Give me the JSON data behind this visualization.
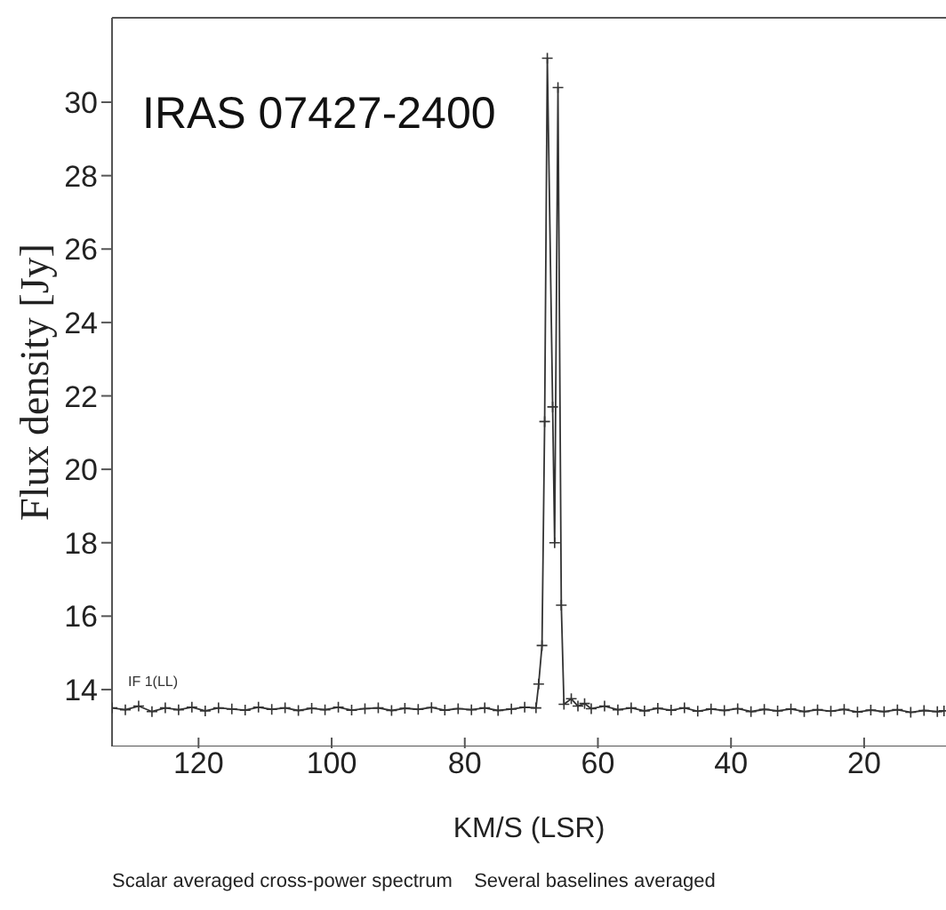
{
  "chart_data": {
    "type": "line",
    "xlabel": "KM/S (LSR)",
    "ylabel": "Flux density [Jy]",
    "annotations": [
      "IRAS 07427-2400",
      "IF 1(LL)",
      "Scalar averaged cross-power spectrum    Several baselines averaged"
    ],
    "xlim": [
      133,
      7.7
    ],
    "xticks": [
      120,
      100,
      80,
      60,
      40,
      20
    ],
    "ylim": [
      12.45,
      32.3
    ],
    "yticks": [
      14,
      16,
      18,
      20,
      22,
      24,
      26,
      28,
      30
    ],
    "marker": "cross",
    "line_style": "solid",
    "series": [
      {
        "color": "#333333",
        "x": [
          133,
          131,
          129,
          127,
          125,
          123,
          121,
          119,
          117,
          115,
          113,
          111,
          109,
          107,
          105,
          103,
          101,
          99,
          97,
          95,
          93,
          91,
          89,
          87,
          85,
          83,
          81,
          79,
          77,
          75,
          73,
          71,
          69.3,
          68.9,
          68.4,
          68.0,
          67.6,
          66.8,
          66.5,
          66.0,
          65.5,
          65.1,
          64,
          63,
          62,
          61,
          59,
          57,
          55,
          53,
          51,
          49,
          47,
          45,
          43,
          41,
          39,
          37,
          35,
          33,
          31,
          29,
          27,
          25,
          23,
          21,
          19,
          17,
          15,
          13,
          11,
          9,
          8
        ],
        "values": [
          13.5,
          13.45,
          13.55,
          13.4,
          13.5,
          13.45,
          13.52,
          13.42,
          13.5,
          13.47,
          13.44,
          13.52,
          13.46,
          13.5,
          13.43,
          13.49,
          13.45,
          13.52,
          13.44,
          13.48,
          13.5,
          13.43,
          13.49,
          13.46,
          13.51,
          13.44,
          13.48,
          13.45,
          13.5,
          13.43,
          13.47,
          13.52,
          13.5,
          14.15,
          15.2,
          21.3,
          31.2,
          21.7,
          18.0,
          30.4,
          16.3,
          13.6,
          13.75,
          13.55,
          13.62,
          13.48,
          13.55,
          13.45,
          13.5,
          13.42,
          13.49,
          13.44,
          13.5,
          13.41,
          13.47,
          13.43,
          13.48,
          13.4,
          13.46,
          13.42,
          13.47,
          13.4,
          13.45,
          13.41,
          13.46,
          13.39,
          13.44,
          13.4,
          13.45,
          13.38,
          13.43,
          13.4,
          13.42
        ]
      }
    ]
  }
}
